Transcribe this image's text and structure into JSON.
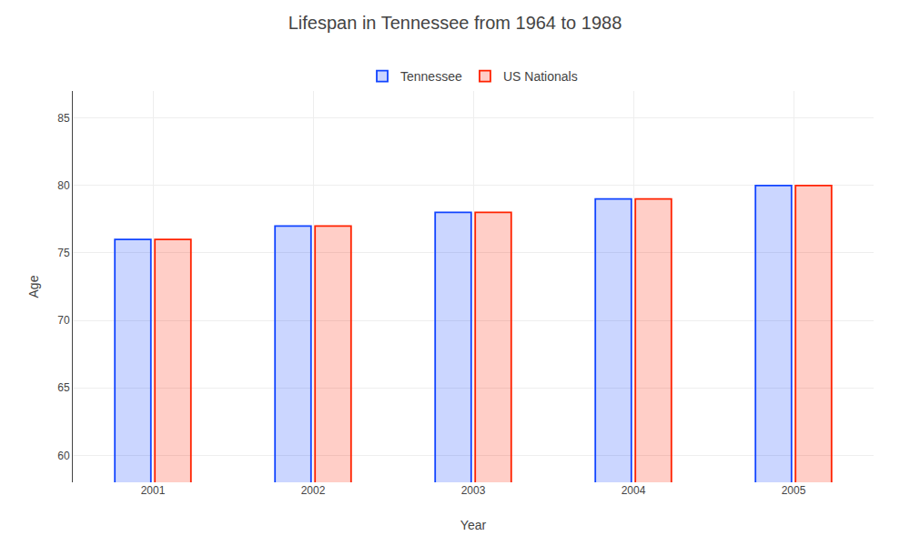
{
  "chart_data": {
    "type": "bar",
    "title": "Lifespan in Tennessee from 1964 to 1988",
    "x_label": "Year",
    "y_label": "Age",
    "categories": [
      "2001",
      "2002",
      "2003",
      "2004",
      "2005"
    ],
    "series": [
      {
        "name": "Tennessee",
        "color": "#1144ff",
        "values": [
          76,
          77,
          78,
          79,
          80
        ]
      },
      {
        "name": "US Nationals",
        "color": "#ff2200",
        "values": [
          76,
          77,
          78,
          79,
          80
        ]
      }
    ],
    "ylim": [
      58,
      87
    ],
    "yticks": [
      60,
      65,
      70,
      75,
      80,
      85
    ],
    "grid": true,
    "legend": "upper center"
  }
}
